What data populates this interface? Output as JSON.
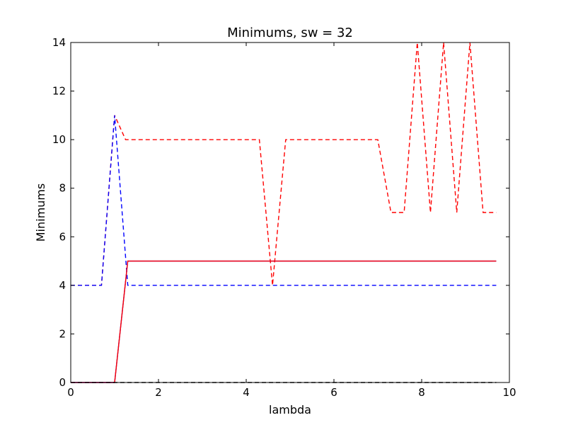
{
  "chart_data": {
    "type": "line",
    "title": "Minimums, sw = 32",
    "xlabel": "lambda",
    "ylabel": "Minimums",
    "xlim": [
      0,
      10
    ],
    "ylim": [
      0,
      14
    ],
    "xticks": [
      0,
      2,
      4,
      6,
      8,
      10
    ],
    "yticks": [
      0,
      2,
      4,
      6,
      8,
      10,
      12,
      14
    ],
    "grid": false,
    "legend": "none",
    "series": [
      {
        "color": "#ff0000",
        "dash": "dashed",
        "x": [
          0,
          0.7,
          1.0,
          1.25,
          1.3,
          4.3,
          4.6,
          4.9,
          7.0,
          7.3,
          7.6,
          7.9,
          8.2,
          8.5,
          8.8,
          9.1,
          9.4,
          9.7
        ],
        "y": [
          4,
          4,
          11,
          10,
          10,
          10,
          4,
          10,
          10,
          7,
          7,
          14,
          7,
          14,
          7,
          14,
          7,
          7
        ]
      },
      {
        "color": "#0000ff",
        "dash": "dashed",
        "x": [
          0,
          0.7,
          1.0,
          1.3,
          9.7
        ],
        "y": [
          4,
          4,
          11,
          4,
          4
        ]
      },
      {
        "color": "#0000ff",
        "dash": "solid",
        "x": [
          0,
          1.0,
          1.3,
          9.7
        ],
        "y": [
          0,
          0,
          5,
          5
        ]
      },
      {
        "color": "#ff0000",
        "dash": "solid",
        "x": [
          0,
          1.0,
          1.3,
          9.7
        ],
        "y": [
          0,
          0,
          5,
          5
        ]
      },
      {
        "color": "#000000",
        "dash": "dashed",
        "x": [
          0,
          9.7
        ],
        "y": [
          0,
          0
        ]
      }
    ]
  }
}
